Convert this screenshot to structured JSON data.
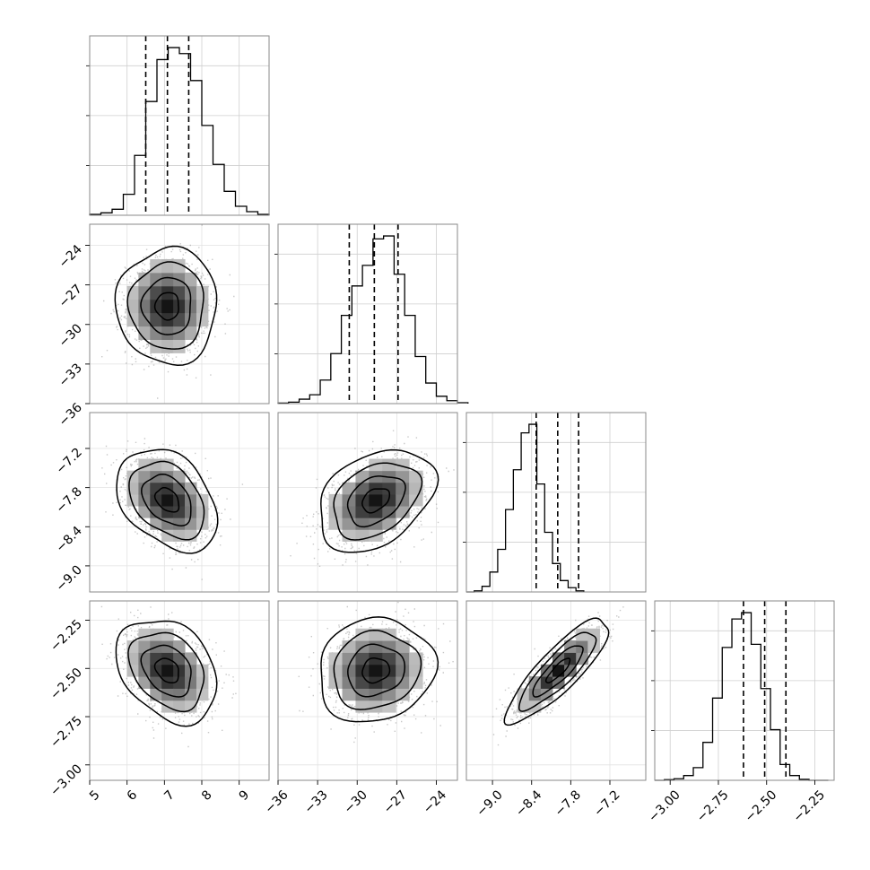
{
  "chart_data": {
    "type": "corner",
    "parameters": [
      {
        "range": [
          5.0,
          9.8
        ],
        "ticks": [
          5,
          6,
          7,
          8,
          9
        ],
        "tick_labels": [
          "5",
          "6",
          "7",
          "8",
          "9"
        ],
        "quantiles": [
          6.5,
          7.08,
          7.65
        ],
        "mean": 7.08,
        "sigma": 0.55
      },
      {
        "range": [
          -36.0,
          -22.4
        ],
        "ticks": [
          -36,
          -33,
          -30,
          -27,
          -24
        ],
        "tick_labels": [
          "−36",
          "−33",
          "−30",
          "−27",
          "−24"
        ],
        "quantiles": [
          -30.6,
          -28.7,
          -26.9
        ],
        "mean": -28.6,
        "sigma": 1.8
      },
      {
        "range": [
          -9.4,
          -6.65
        ],
        "ticks": [
          -9.0,
          -8.4,
          -7.8,
          -7.2
        ],
        "tick_labels": [
          "−9.0",
          "−8.4",
          "−7.8",
          "−7.2"
        ],
        "quantiles": [
          -8.33,
          -8.0,
          -7.68
        ],
        "mean": -7.99,
        "sigma": 0.32
      },
      {
        "range": [
          -3.08,
          -2.15
        ],
        "ticks": [
          -3.0,
          -2.75,
          -2.5,
          -2.25
        ],
        "tick_labels": [
          "−3.00",
          "−2.75",
          "−2.50",
          "−2.25"
        ],
        "quantiles": [
          -2.62,
          -2.51,
          -2.4
        ],
        "mean": -2.51,
        "sigma": 0.11
      }
    ],
    "correlations": [
      {
        "i": 1,
        "j": 0,
        "rho": 0.0
      },
      {
        "i": 2,
        "j": 0,
        "rho": -0.35
      },
      {
        "i": 2,
        "j": 1,
        "rho": 0.35
      },
      {
        "i": 3,
        "j": 0,
        "rho": -0.3
      },
      {
        "i": 3,
        "j": 1,
        "rho": 0.1
      },
      {
        "i": 3,
        "j": 2,
        "rho": 0.85
      }
    ],
    "histograms": [
      {
        "param": 0,
        "edges_start": 5.0,
        "bin_width": 0.3,
        "counts": [
          3,
          8,
          20,
          70,
          200,
          380,
          520,
          560,
          540,
          450,
          300,
          170,
          80,
          30,
          12,
          3
        ]
      },
      {
        "param": 1,
        "edges_start": -36.0,
        "bin_width": 0.8,
        "counts": [
          2,
          5,
          15,
          30,
          80,
          170,
          300,
          400,
          470,
          560,
          570,
          440,
          300,
          160,
          70,
          25,
          10,
          3
        ]
      },
      {
        "param": 2,
        "edges_start": -9.4,
        "bin_width": 0.12,
        "counts": [
          0,
          4,
          20,
          70,
          150,
          290,
          430,
          560,
          590,
          380,
          210,
          100,
          40,
          15,
          4
        ]
      },
      {
        "param": 3,
        "edges_start": -3.08,
        "bin_width": 0.05,
        "counts": [
          0,
          2,
          5,
          15,
          40,
          120,
          260,
          420,
          510,
          530,
          430,
          290,
          160,
          50,
          15,
          3,
          0,
          0
        ]
      }
    ],
    "grid": true,
    "contour_levels_sigma": [
      0.5,
      1.0,
      1.5,
      2.0
    ],
    "xlabel": "",
    "ylabel": "",
    "title": ""
  }
}
